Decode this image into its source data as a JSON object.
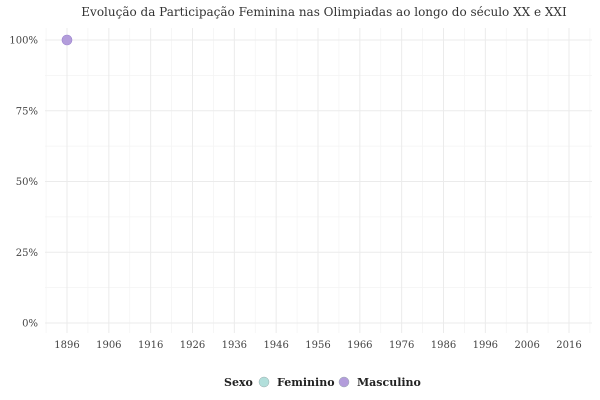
{
  "chart_data": {
    "type": "scatter",
    "title": "Evolução da Participação Feminina nas Olimpiadas ao longo do século XX e XXI",
    "xlabel": "",
    "ylabel": "",
    "x_ticks": [
      1896,
      1906,
      1916,
      1926,
      1936,
      1946,
      1956,
      1966,
      1976,
      1986,
      1996,
      2006,
      2016
    ],
    "y_ticks": [
      "0%",
      "25%",
      "50%",
      "75%",
      "100%"
    ],
    "y_tick_values": [
      0,
      25,
      50,
      75,
      100
    ],
    "xlim": [
      1896,
      2016
    ],
    "ylim": [
      0,
      100
    ],
    "grid": true,
    "legend": {
      "title": "Sexo",
      "placement": "bottom",
      "entries": [
        {
          "label": "Feminino",
          "color": "#b2dfdb"
        },
        {
          "label": "Masculino",
          "color": "#b39ddb"
        }
      ]
    },
    "series": [
      {
        "name": "Feminino",
        "color": "#b2dfdb",
        "points": []
      },
      {
        "name": "Masculino",
        "color": "#b39ddb",
        "points": [
          {
            "x": 1896,
            "y": 100
          }
        ]
      }
    ]
  }
}
